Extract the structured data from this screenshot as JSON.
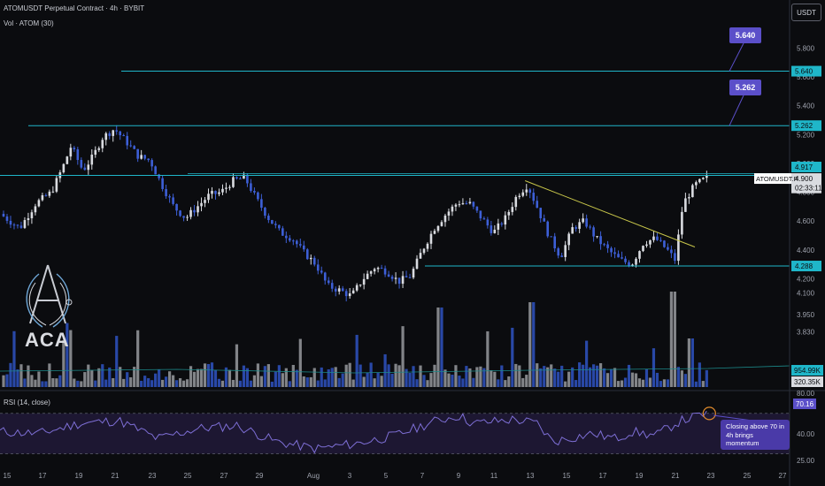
{
  "header": {
    "title": "ATOMUSDT Perpetual Contract · 4h · BYBIT",
    "volume_label": "Vol · ATOM (30)"
  },
  "currency_button": "USDT",
  "logo_text": "ACA",
  "callouts": [
    {
      "label": "5.640"
    },
    {
      "label": "5.262"
    }
  ],
  "rsi": {
    "label": "RSI (14, close)",
    "value_badge": "70.16",
    "levels": [
      80.0,
      70.0,
      40.0,
      25.0
    ],
    "annotation": "Closing above 70 in 4h brings momentum"
  },
  "colors": {
    "background": "#0b0c0f",
    "up": "#d9dbe0",
    "down": "#3d5fd6",
    "level_line": "#1fb6c9",
    "trendline": "#c8c64a",
    "callout": "#5b4fc9",
    "rsi_band": "#2a1f4a",
    "rsi_line": "#7e6fd6"
  },
  "chart_data": {
    "type": "candlestick",
    "symbol": "ATOMUSDT.P",
    "timeframe": "4h",
    "ylim": [
      4.0,
      5.95
    ],
    "price_ticks": [
      5.8,
      5.6,
      5.4,
      5.2,
      5.0,
      4.8,
      4.6,
      4.4,
      4.2,
      4.1,
      3.95,
      3.83
    ],
    "x_ticks": [
      "15",
      "17",
      "19",
      "21",
      "23",
      "25",
      "27",
      "29",
      "Aug",
      "3",
      "5",
      "7",
      "9",
      "11",
      "13",
      "15",
      "17",
      "19",
      "21",
      "23",
      "25",
      "27"
    ],
    "horizontal_levels": [
      5.64,
      5.262,
      4.917,
      4.288
    ],
    "price_labels": [
      {
        "value": "5.640",
        "color": "#1fb6c9",
        "text_color": "#0b0c0f"
      },
      {
        "value": "5.262",
        "color": "#1fb6c9",
        "text_color": "#0b0c0f"
      },
      {
        "value": "4.917",
        "color": "#1fb6c9",
        "text_color": "#0b0c0f"
      },
      {
        "value": "4.900",
        "color": "#d9dbe0",
        "text_color": "#0b0c0f"
      },
      {
        "value": "02:33:11",
        "color": "#d9dbe0",
        "text_color": "#0b0c0f"
      },
      {
        "value": "4.288",
        "color": "#1fb6c9",
        "text_color": "#0b0c0f"
      }
    ],
    "symbol_badge": "ATOMUSDT.P",
    "last_price": 4.9,
    "volume_labels": [
      "954.99K",
      "320.35K"
    ],
    "price_path": [
      [
        0.0,
        4.65
      ],
      [
        0.025,
        4.55
      ],
      [
        0.045,
        4.72
      ],
      [
        0.065,
        4.8
      ],
      [
        0.08,
        4.98
      ],
      [
        0.09,
        5.12
      ],
      [
        0.105,
        4.95
      ],
      [
        0.118,
        5.05
      ],
      [
        0.13,
        5.18
      ],
      [
        0.145,
        5.24
      ],
      [
        0.16,
        5.15
      ],
      [
        0.175,
        5.05
      ],
      [
        0.19,
        5.02
      ],
      [
        0.205,
        4.85
      ],
      [
        0.22,
        4.7
      ],
      [
        0.235,
        4.62
      ],
      [
        0.25,
        4.7
      ],
      [
        0.265,
        4.78
      ],
      [
        0.28,
        4.8
      ],
      [
        0.295,
        4.88
      ],
      [
        0.31,
        4.9
      ],
      [
        0.325,
        4.75
      ],
      [
        0.34,
        4.62
      ],
      [
        0.355,
        4.52
      ],
      [
        0.37,
        4.48
      ],
      [
        0.385,
        4.38
      ],
      [
        0.4,
        4.3
      ],
      [
        0.415,
        4.15
      ],
      [
        0.43,
        4.12
      ],
      [
        0.445,
        4.08
      ],
      [
        0.46,
        4.2
      ],
      [
        0.475,
        4.28
      ],
      [
        0.49,
        4.25
      ],
      [
        0.505,
        4.18
      ],
      [
        0.52,
        4.22
      ],
      [
        0.535,
        4.4
      ],
      [
        0.55,
        4.55
      ],
      [
        0.565,
        4.65
      ],
      [
        0.58,
        4.73
      ],
      [
        0.595,
        4.72
      ],
      [
        0.61,
        4.62
      ],
      [
        0.625,
        4.52
      ],
      [
        0.64,
        4.62
      ],
      [
        0.655,
        4.78
      ],
      [
        0.668,
        4.85
      ],
      [
        0.68,
        4.7
      ],
      [
        0.695,
        4.5
      ],
      [
        0.71,
        4.35
      ],
      [
        0.725,
        4.55
      ],
      [
        0.74,
        4.6
      ],
      [
        0.755,
        4.48
      ],
      [
        0.77,
        4.4
      ],
      [
        0.785,
        4.33
      ],
      [
        0.8,
        4.3
      ],
      [
        0.815,
        4.45
      ],
      [
        0.83,
        4.48
      ],
      [
        0.845,
        4.4
      ],
      [
        0.855,
        4.33
      ],
      [
        0.865,
        4.72
      ],
      [
        0.88,
        4.85
      ],
      [
        0.895,
        4.9
      ]
    ],
    "trendline": [
      [
        0.665,
        4.88
      ],
      [
        0.88,
        4.42
      ]
    ],
    "rsi_path": [
      [
        0.0,
        52
      ],
      [
        0.05,
        50
      ],
      [
        0.1,
        60
      ],
      [
        0.15,
        63
      ],
      [
        0.2,
        45
      ],
      [
        0.25,
        55
      ],
      [
        0.3,
        58
      ],
      [
        0.35,
        42
      ],
      [
        0.4,
        35
      ],
      [
        0.45,
        40
      ],
      [
        0.5,
        48
      ],
      [
        0.55,
        62
      ],
      [
        0.58,
        68
      ],
      [
        0.6,
        60
      ],
      [
        0.65,
        64
      ],
      [
        0.68,
        60
      ],
      [
        0.7,
        42
      ],
      [
        0.75,
        50
      ],
      [
        0.78,
        45
      ],
      [
        0.8,
        52
      ],
      [
        0.83,
        48
      ],
      [
        0.86,
        62
      ],
      [
        0.895,
        70
      ]
    ]
  }
}
